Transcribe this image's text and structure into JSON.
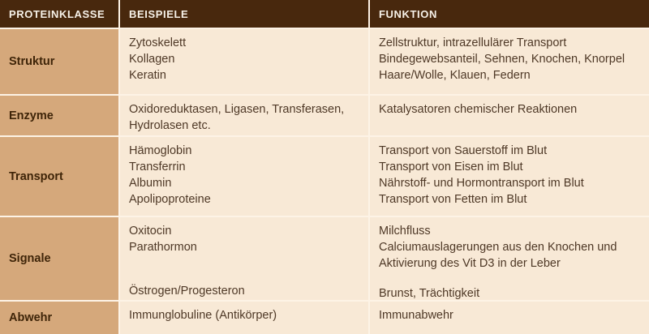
{
  "colors": {
    "header_bg": "#48280d",
    "header_text": "#f7f1e8",
    "label_column_bg": "#d5a87b",
    "cell_bg": "#f8e9d6",
    "separator": "#fdf3e6",
    "label_text": "#3e2408",
    "body_text": "#4e3826"
  },
  "chart_data": {
    "type": "table",
    "columns": [
      "PROTEINKLASSE",
      "BEISPIELE",
      "FUNKTION"
    ],
    "rows": [
      {
        "klasse": "Struktur",
        "beispiele": [
          "Zytoskelett",
          "Kollagen",
          "Keratin"
        ],
        "funktion": [
          "Zellstruktur, intrazellulärer Transport",
          "Bindegewebsanteil, Sehnen, Knochen, Knorpel",
          "Haare/Wolle, Klauen, Federn"
        ]
      },
      {
        "klasse": "Enzyme",
        "beispiele": [
          "Oxidoreduktasen, Ligasen, Transferasen,",
          "Hydrolasen etc."
        ],
        "funktion": [
          "Katalysatoren chemischer Reaktionen"
        ]
      },
      {
        "klasse": "Transport",
        "beispiele": [
          "Hämoglobin",
          "Transferrin",
          "Albumin",
          "Apolipoproteine"
        ],
        "funktion": [
          "Transport von Sauerstoff im Blut",
          "Transport von Eisen im Blut",
          "Nährstoff- und Hormontransport im Blut",
          "Transport von Fetten im Blut"
        ]
      },
      {
        "klasse": "Signale",
        "beispiele": [
          "Oxitocin",
          "Parathormon",
          "",
          "",
          "Östrogen/Progesteron"
        ],
        "funktion": [
          "Milchfluss",
          "Calciumauslagerungen aus den Knochen und",
          "Aktivierung des Vit D3 in der Leber",
          "",
          "Brunst, Trächtigkeit"
        ]
      },
      {
        "klasse": "Abwehr",
        "beispiele": [
          "Immunglobuline (Antikörper)"
        ],
        "funktion": [
          "Immunabwehr"
        ]
      }
    ]
  }
}
